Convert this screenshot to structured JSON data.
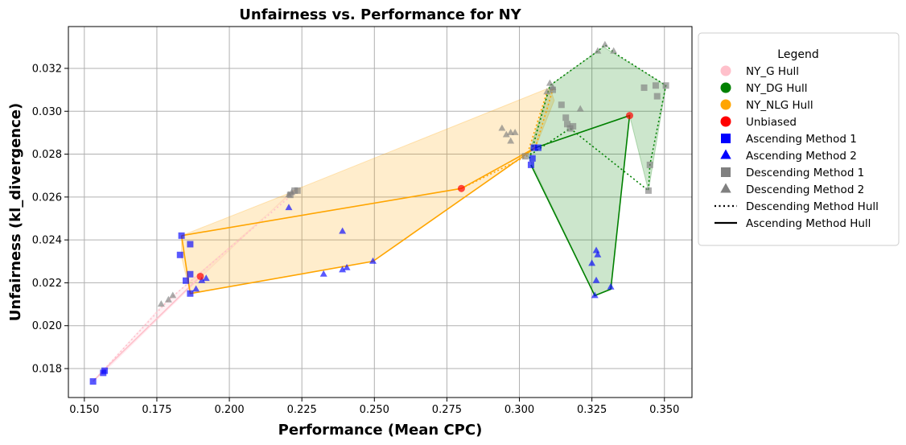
{
  "chart_data": {
    "type": "scatter",
    "title": "Unfairness vs. Performance for NY",
    "xlabel": "Performance (Mean CPC)",
    "ylabel": "Unfairness (kl_divergence)",
    "xlim": [
      0.1445,
      0.3595
    ],
    "ylim": [
      0.01665,
      0.03395
    ],
    "xticks": [
      0.15,
      0.175,
      0.2,
      0.225,
      0.25,
      0.275,
      0.3,
      0.325,
      0.35
    ],
    "xtick_labels": [
      "0.150",
      "0.175",
      "0.200",
      "0.225",
      "0.250",
      "0.275",
      "0.300",
      "0.325",
      "0.350"
    ],
    "yticks": [
      0.018,
      0.02,
      0.022,
      0.024,
      0.026,
      0.028,
      0.03,
      0.032
    ],
    "ytick_labels": [
      "0.018",
      "0.020",
      "0.022",
      "0.024",
      "0.026",
      "0.028",
      "0.030",
      "0.032"
    ],
    "grid": true,
    "legend_title": "Legend",
    "legend_position": "outside right, top",
    "legend": [
      {
        "label": "NY_G Hull",
        "marker": "circle",
        "color": "#ffc0cb"
      },
      {
        "label": "NY_DG Hull",
        "marker": "circle",
        "color": "#008000"
      },
      {
        "label": "NY_NLG Hull",
        "marker": "circle",
        "color": "#ffa500"
      },
      {
        "label": "Unbiased",
        "marker": "circle",
        "color": "#ff0000"
      },
      {
        "label": "Ascending Method 1",
        "marker": "square",
        "color": "#0000ff"
      },
      {
        "label": "Ascending Method 2",
        "marker": "triangle",
        "color": "#0000ff"
      },
      {
        "label": "Descending Method 1",
        "marker": "square",
        "color": "#808080"
      },
      {
        "label": "Descending Method 2",
        "marker": "triangle",
        "color": "#808080"
      },
      {
        "label": "Descending Method Hull",
        "marker": "dotted-line",
        "color": "#000000"
      },
      {
        "label": "Ascending Method Hull",
        "marker": "solid-line",
        "color": "#000000"
      }
    ],
    "hulls": [
      {
        "group": "NY_G",
        "color": "#ffc0cb",
        "fill_points": [
          [
            0.153,
            0.0174
          ],
          [
            0.1565,
            0.0178
          ],
          [
            0.1905,
            0.0223
          ],
          [
            0.221,
            0.0262
          ],
          [
            0.2235,
            0.0264
          ],
          [
            0.22,
            0.026
          ],
          [
            0.1765,
            0.0209
          ],
          [
            0.153,
            0.0174
          ]
        ],
        "ascending_line": [
          [
            0.153,
            0.0174
          ],
          [
            0.1565,
            0.0179
          ],
          [
            0.19,
            0.0223
          ]
        ],
        "descending_line": [
          [
            0.153,
            0.0174
          ],
          [
            0.179,
            0.0212
          ],
          [
            0.2225,
            0.0262
          ]
        ]
      },
      {
        "group": "NY_NLG",
        "color": "#ffa500",
        "fill_points": [
          [
            0.1835,
            0.0242
          ],
          [
            0.221,
            0.0262
          ],
          [
            0.222,
            0.0263
          ],
          [
            0.3105,
            0.0311
          ],
          [
            0.312,
            0.0305
          ],
          [
            0.3055,
            0.0283
          ],
          [
            0.2495,
            0.023
          ],
          [
            0.1865,
            0.0215
          ],
          [
            0.1835,
            0.0232
          ],
          [
            0.1835,
            0.0242
          ]
        ],
        "ascending_line": [
          [
            0.1835,
            0.0242
          ],
          [
            0.28,
            0.0264
          ],
          [
            0.3055,
            0.0283
          ],
          [
            0.2495,
            0.023
          ],
          [
            0.1865,
            0.0215
          ],
          [
            0.1835,
            0.0242
          ]
        ],
        "descending_line": [
          [
            0.28,
            0.0264
          ],
          [
            0.3025,
            0.0279
          ],
          [
            0.3095,
            0.0309
          ],
          [
            0.3115,
            0.031
          ],
          [
            0.3055,
            0.0283
          ]
        ]
      },
      {
        "group": "NY_DG",
        "color": "#008000",
        "fill_points": [
          [
            0.303,
            0.0279
          ],
          [
            0.3105,
            0.0312
          ],
          [
            0.329,
            0.033
          ],
          [
            0.3505,
            0.0312
          ],
          [
            0.3445,
            0.0263
          ],
          [
            0.338,
            0.0298
          ],
          [
            0.3315,
            0.0217
          ],
          [
            0.326,
            0.0214
          ],
          [
            0.303,
            0.0279
          ]
        ],
        "ascending_line": [
          [
            0.304,
            0.0275
          ],
          [
            0.326,
            0.0214
          ],
          [
            0.3315,
            0.0217
          ],
          [
            0.338,
            0.0298
          ],
          [
            0.3055,
            0.0283
          ]
        ],
        "descending_line": [
          [
            0.3035,
            0.0278
          ],
          [
            0.3105,
            0.0312
          ],
          [
            0.327,
            0.0328
          ],
          [
            0.3295,
            0.0331
          ],
          [
            0.333,
            0.0327
          ],
          [
            0.3505,
            0.0312
          ],
          [
            0.345,
            0.0275
          ],
          [
            0.3445,
            0.0263
          ],
          [
            0.3175,
            0.0292
          ],
          [
            0.303,
            0.0279
          ]
        ]
      }
    ],
    "series": [
      {
        "name": "Unbiased",
        "marker": "circle",
        "color": "#ff0000",
        "points": [
          [
            0.19,
            0.0223
          ],
          [
            0.28,
            0.0264
          ],
          [
            0.338,
            0.0298
          ]
        ]
      },
      {
        "name": "Ascending Method 1",
        "marker": "square",
        "color": "#0000ff",
        "points": [
          [
            0.153,
            0.0174
          ],
          [
            0.1565,
            0.0178
          ],
          [
            0.157,
            0.0179
          ],
          [
            0.1835,
            0.0242
          ],
          [
            0.183,
            0.0233
          ],
          [
            0.1865,
            0.0238
          ],
          [
            0.185,
            0.0221
          ],
          [
            0.1865,
            0.0224
          ],
          [
            0.1865,
            0.0215
          ],
          [
            0.304,
            0.0275
          ],
          [
            0.3045,
            0.0278
          ],
          [
            0.305,
            0.0283
          ],
          [
            0.3065,
            0.0283
          ]
        ]
      },
      {
        "name": "Ascending Method 2",
        "marker": "triangle",
        "color": "#0000ff",
        "points": [
          [
            0.1885,
            0.0217
          ],
          [
            0.1905,
            0.0221
          ],
          [
            0.192,
            0.0222
          ],
          [
            0.2205,
            0.0255
          ],
          [
            0.2325,
            0.0224
          ],
          [
            0.239,
            0.0226
          ],
          [
            0.2405,
            0.0227
          ],
          [
            0.2495,
            0.023
          ],
          [
            0.239,
            0.0244
          ],
          [
            0.326,
            0.0214
          ],
          [
            0.3265,
            0.0221
          ],
          [
            0.325,
            0.0229
          ],
          [
            0.327,
            0.0233
          ],
          [
            0.3265,
            0.0235
          ],
          [
            0.3315,
            0.0218
          ]
        ]
      },
      {
        "name": "Descending Method 1",
        "marker": "square",
        "color": "#808080",
        "points": [
          [
            0.221,
            0.0261
          ],
          [
            0.2225,
            0.0263
          ],
          [
            0.2235,
            0.0263
          ],
          [
            0.302,
            0.0279
          ],
          [
            0.3115,
            0.031
          ],
          [
            0.3145,
            0.0303
          ],
          [
            0.316,
            0.0297
          ],
          [
            0.3165,
            0.0294
          ],
          [
            0.3175,
            0.0292
          ],
          [
            0.3185,
            0.0293
          ],
          [
            0.343,
            0.0311
          ],
          [
            0.347,
            0.0312
          ],
          [
            0.3505,
            0.0312
          ],
          [
            0.3475,
            0.0307
          ],
          [
            0.345,
            0.0275
          ],
          [
            0.3445,
            0.0263
          ]
        ]
      },
      {
        "name": "Descending Method 2",
        "marker": "triangle",
        "color": "#808080",
        "points": [
          [
            0.1765,
            0.021
          ],
          [
            0.179,
            0.0212
          ],
          [
            0.1805,
            0.0214
          ],
          [
            0.2205,
            0.0261
          ],
          [
            0.2215,
            0.0262
          ],
          [
            0.294,
            0.0292
          ],
          [
            0.2955,
            0.0289
          ],
          [
            0.297,
            0.029
          ],
          [
            0.2985,
            0.029
          ],
          [
            0.297,
            0.0286
          ],
          [
            0.3095,
            0.0309
          ],
          [
            0.3105,
            0.0313
          ],
          [
            0.3115,
            0.0311
          ],
          [
            0.321,
            0.0301
          ],
          [
            0.327,
            0.0328
          ],
          [
            0.3295,
            0.0331
          ],
          [
            0.3325,
            0.0328
          ]
        ]
      }
    ]
  }
}
